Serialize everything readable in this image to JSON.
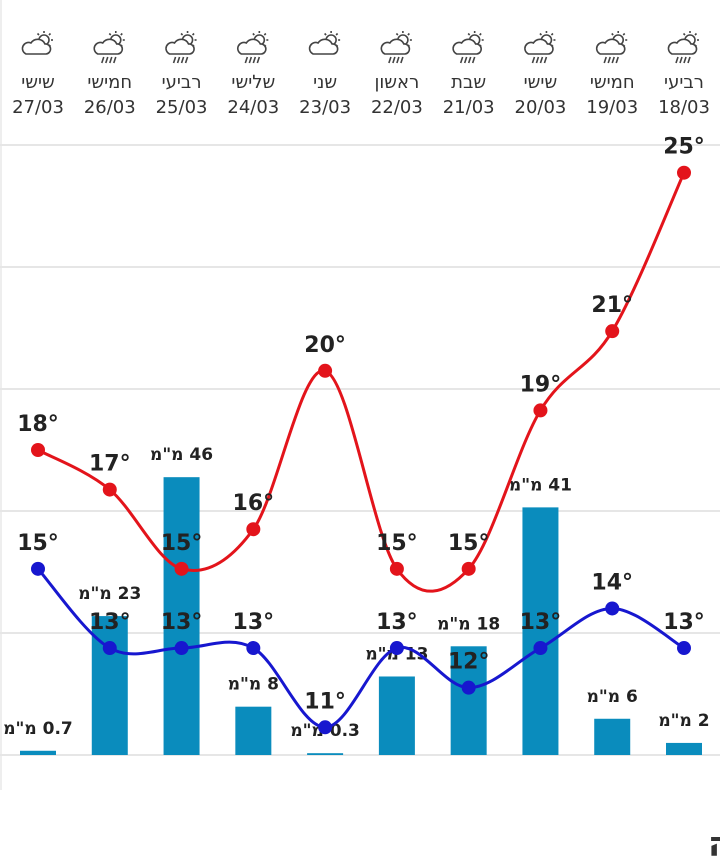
{
  "chart_data": {
    "type": "combo",
    "days": [
      "רביעי",
      "חמישי",
      "שישי",
      "שבת",
      "ראשון",
      "שני",
      "שלישי",
      "רביעי",
      "חמישי",
      "שישי"
    ],
    "categories": [
      "18/03",
      "19/03",
      "20/03",
      "21/03",
      "22/03",
      "23/03",
      "24/03",
      "25/03",
      "26/03",
      "27/03"
    ],
    "ylim": [
      10.3,
      25.7
    ],
    "y2lim": [
      0,
      101
    ],
    "series": [
      {
        "type": "line",
        "color": "#e3141b",
        "values": [
          25,
          21,
          19,
          15,
          15,
          20,
          16,
          15,
          17,
          18
        ],
        "value_labels": [
          "25°",
          "21°",
          "19°",
          "15°",
          "15°",
          "20°",
          "16°",
          "15°",
          "17°",
          "18°"
        ]
      },
      {
        "type": "line",
        "color": "#1717cf",
        "values": [
          13,
          14,
          13,
          12,
          13,
          11,
          13,
          13,
          13,
          15
        ],
        "value_labels": [
          "13°",
          "14°",
          "13°",
          "12°",
          "13°",
          "11°",
          "13°",
          "13°",
          "13°",
          "15°"
        ]
      },
      {
        "type": "bar",
        "axis": "y2",
        "color": "#0a8cbd",
        "values": [
          2,
          6,
          41,
          18,
          13,
          0.3,
          8,
          46,
          23,
          0.7
        ],
        "value_labels": [
          "2 מ\"מ",
          "6 מ\"מ",
          "41 מ\"מ",
          "18 מ\"מ",
          "13 מ\"מ",
          "0.3 מ\"מ",
          "8 מ\"מ",
          "46 מ\"מ",
          "23 מ\"מ",
          "0.7 מ\"מ"
        ]
      }
    ]
  },
  "section_title": "מזג אוויר שעתי נהריה"
}
